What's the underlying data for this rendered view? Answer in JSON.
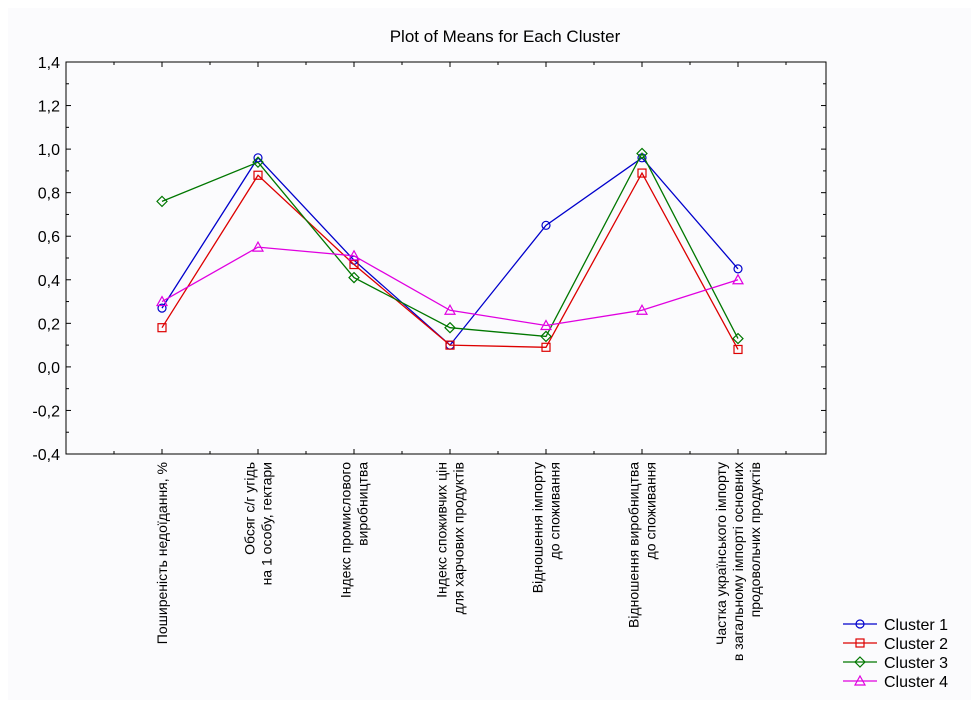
{
  "chart_data": {
    "type": "line",
    "title": "Plot of Means for Each Cluster",
    "xlabel": "",
    "ylabel": "",
    "ylim": [
      -0.4,
      1.4
    ],
    "yticks": [
      "1,4",
      "1,2",
      "1,0",
      "0,8",
      "0,6",
      "0,4",
      "0,2",
      "0,0",
      "-0,2",
      "-0,4"
    ],
    "grid": false,
    "legend_position": "bottom-right",
    "categories": [
      [
        "Поширеність недоїдання, %"
      ],
      [
        "Обсяг с/г угідь",
        "на 1 особу, гектари"
      ],
      [
        "Індекс промислового",
        "виробництва"
      ],
      [
        "Індекс  споживчих цін",
        "для харчових продуктів"
      ],
      [
        "Відношення імпорту",
        "до споживання"
      ],
      [
        "Відношення  виробництва",
        "до споживання"
      ],
      [
        "Частка українського імпорту",
        "в загальному імпорті основних",
        "продовольчих продуктів"
      ]
    ],
    "series": [
      {
        "name": "Cluster  1",
        "color": "#0000cc",
        "marker": "circle",
        "values": [
          0.27,
          0.96,
          0.49,
          0.1,
          0.65,
          0.96,
          0.45
        ]
      },
      {
        "name": "Cluster  2",
        "color": "#dd0000",
        "marker": "square",
        "values": [
          0.18,
          0.88,
          0.47,
          0.1,
          0.09,
          0.89,
          0.08
        ]
      },
      {
        "name": "Cluster  3",
        "color": "#007700",
        "marker": "diamond",
        "values": [
          0.76,
          0.94,
          0.41,
          0.18,
          0.14,
          0.98,
          0.13
        ]
      },
      {
        "name": "Cluster  4",
        "color": "#e000e0",
        "marker": "triangle",
        "values": [
          0.3,
          0.55,
          0.51,
          0.26,
          0.19,
          0.26,
          0.4
        ]
      }
    ]
  }
}
